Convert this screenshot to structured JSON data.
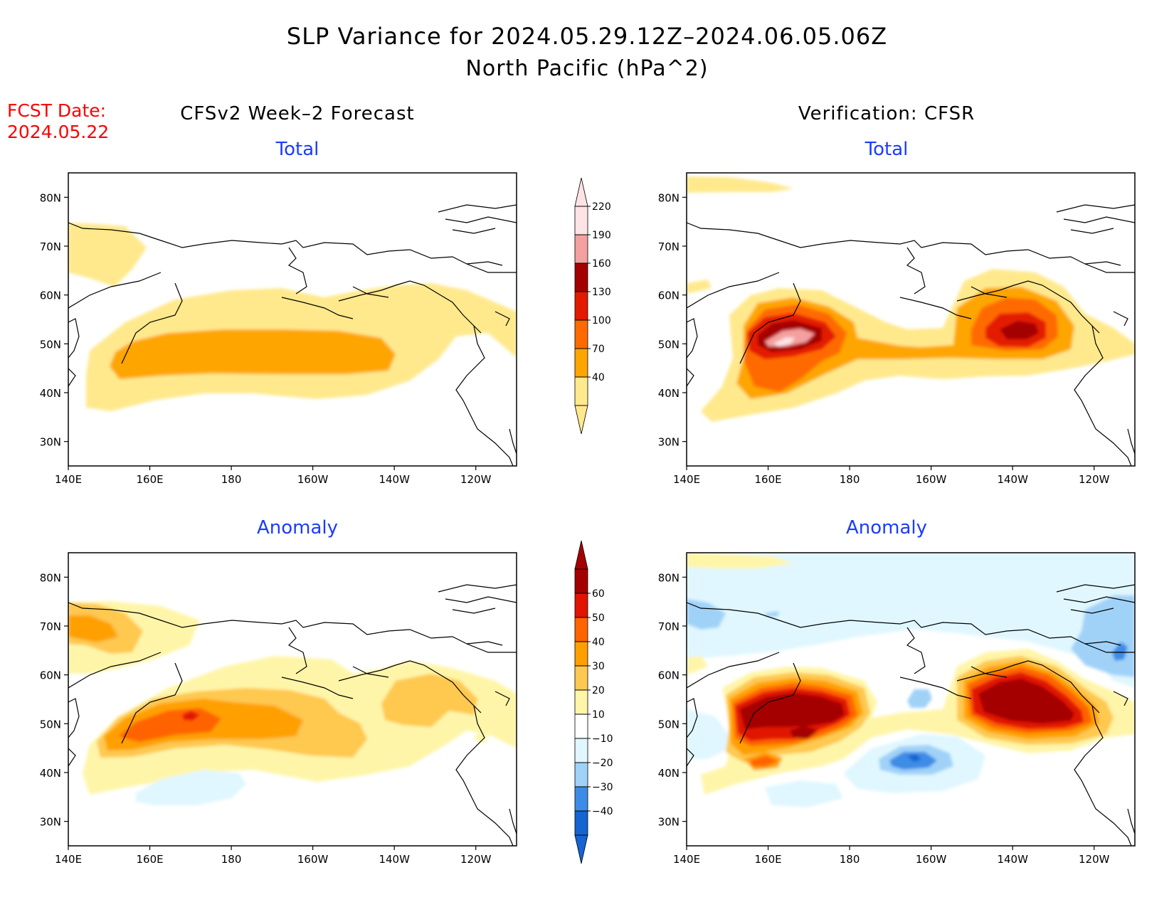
{
  "title_line1": "SLP Variance for 2024.05.29.12Z–2024.06.05.06Z",
  "title_line2": "North Pacific (hPa^2)",
  "fcst_label": "FCST Date:",
  "fcst_date": "2024.05.22",
  "left_header": "CFSv2 Week–2 Forecast",
  "right_header": "Verification: CFSR",
  "panels": [
    {
      "id": "forecast-total",
      "label": "Total"
    },
    {
      "id": "verification-total",
      "label": "Total"
    },
    {
      "id": "forecast-anomaly",
      "label": "Anomaly"
    },
    {
      "id": "verification-anomaly",
      "label": "Anomaly"
    }
  ],
  "axes": {
    "lon_ticks": [
      "140E",
      "160E",
      "180",
      "160W",
      "140W",
      "120W"
    ],
    "lat_ticks": [
      "80N",
      "70N",
      "60N",
      "50N",
      "40N",
      "30N"
    ],
    "lon_range_deg_east": [
      140,
      250
    ],
    "lat_range": [
      25,
      85
    ]
  },
  "colorbars": {
    "total": {
      "levels": [
        "40",
        "70",
        "100",
        "130",
        "160",
        "190",
        "220"
      ],
      "colors": [
        "#ffe98c",
        "#ffa500",
        "#ff6a00",
        "#e31a00",
        "#a50000",
        "#f4a0a0",
        "#fde3e3"
      ]
    },
    "anomaly": {
      "levels": [
        "−40",
        "−30",
        "−20",
        "−10",
        "10",
        "20",
        "30",
        "40",
        "50",
        "60"
      ],
      "colors": [
        "#1464d2",
        "#3c8ce6",
        "#a0d2f8",
        "#e0f7ff",
        "#ffffff",
        "#fff5a8",
        "#ffc850",
        "#ffa000",
        "#ff6400",
        "#e11400",
        "#a50000"
      ]
    }
  },
  "colors": {
    "title": "#000000",
    "fcst": "#ff0000",
    "panel_label": "#1a3cff"
  }
}
